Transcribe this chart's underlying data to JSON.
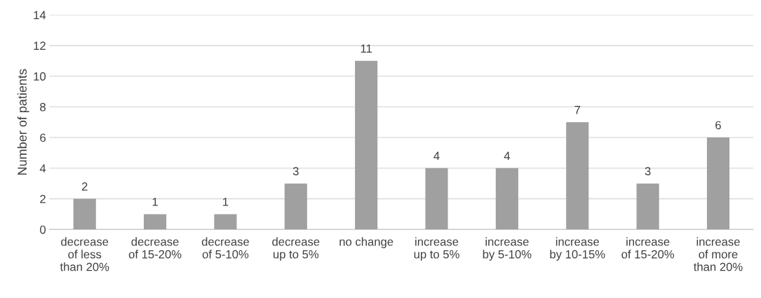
{
  "chart_data": {
    "type": "bar",
    "ylabel": "Number of patients",
    "categories": [
      "decrease\nof less\nthan 20%",
      "decrease\nof 15-20%",
      "decrease\nof 5-10%",
      "decrease\nup to 5%",
      "no change",
      "increase\nup to 5%",
      "increase\nby 5-10%",
      "increase\nby 10-15%",
      "increase\nof 15-20%",
      "increase\nof more\nthan 20%"
    ],
    "values": [
      2,
      1,
      1,
      3,
      11,
      4,
      4,
      7,
      3,
      6
    ],
    "color": "#a0a0a0",
    "ylim": [
      0,
      14
    ],
    "yticks": [
      0,
      2,
      4,
      6,
      8,
      10,
      12,
      14
    ],
    "grid": "y",
    "data_labels": true,
    "legend": false
  }
}
